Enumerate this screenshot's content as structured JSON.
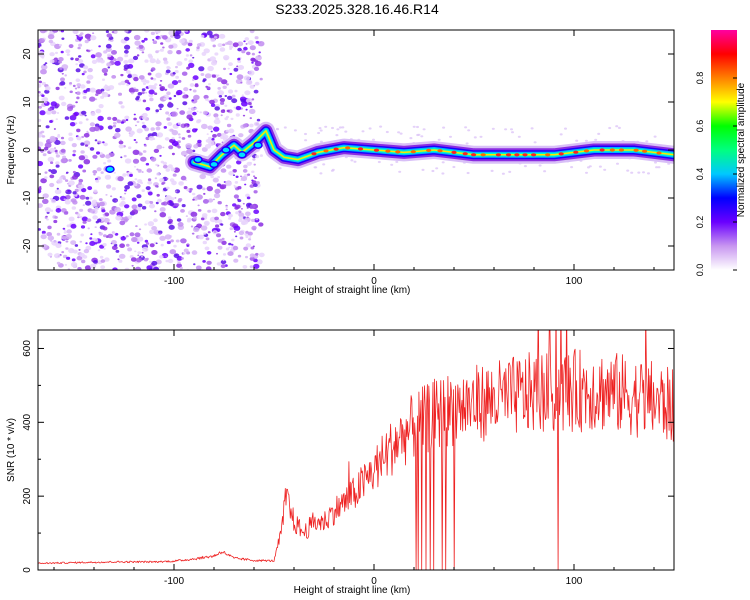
{
  "title": "S233.2025.328.16.46.R14",
  "chart_data": [
    {
      "type": "heatmap",
      "xlabel": "Height of straight line (km)",
      "ylabel": "Frequency (Hz)",
      "xlim": [
        -168,
        150
      ],
      "ylim": [
        -25,
        25
      ],
      "xticks": [
        "-100",
        "0",
        "100"
      ],
      "yticks": [
        "20",
        "10",
        "0",
        "-10",
        "-20"
      ],
      "colorbar": {
        "label": "Normalized spectral amplitude",
        "range": [
          0,
          1
        ],
        "ticks": [
          "0.0",
          "0.2",
          "0.4",
          "0.6",
          "0.8"
        ],
        "colors": [
          "#ffffff",
          "#c896f0",
          "#6a00ff",
          "#0000ff",
          "#00c8ff",
          "#00ff80",
          "#00ff00",
          "#ffff00",
          "#ff8000",
          "#ff0000",
          "#ff00a0"
        ]
      },
      "ridge": [
        {
          "x": -90,
          "y": -2.5
        },
        {
          "x": -82,
          "y": -3.5
        },
        {
          "x": -76,
          "y": -1
        },
        {
          "x": -70,
          "y": 1
        },
        {
          "x": -66,
          "y": -0.5
        },
        {
          "x": -60,
          "y": 1.5
        },
        {
          "x": -54,
          "y": 4
        },
        {
          "x": -50,
          "y": 0
        },
        {
          "x": -45,
          "y": -1.5
        },
        {
          "x": -38,
          "y": -2
        },
        {
          "x": -28,
          "y": -0.5
        },
        {
          "x": -15,
          "y": 0.5
        },
        {
          "x": 0,
          "y": 0
        },
        {
          "x": 15,
          "y": -0.5
        },
        {
          "x": 30,
          "y": 0
        },
        {
          "x": 50,
          "y": -1
        },
        {
          "x": 70,
          "y": -1
        },
        {
          "x": 90,
          "y": -1
        },
        {
          "x": 110,
          "y": 0
        },
        {
          "x": 130,
          "y": 0
        },
        {
          "x": 150,
          "y": -1
        }
      ],
      "noise_region": {
        "x_from": -168,
        "x_to": -56,
        "level": 0.2
      }
    },
    {
      "type": "line",
      "xlabel": "Height of straight line (km)",
      "ylabel": "SNR (10 * v/v)",
      "xlim": [
        -168,
        150
      ],
      "ylim": [
        0,
        650
      ],
      "xticks": [
        "-100",
        "0",
        "100"
      ],
      "yticks": [
        "600",
        "400",
        "200",
        "0"
      ],
      "series": [
        {
          "color": "#ee2222",
          "x": [
            -168,
            -150,
            -130,
            -110,
            -100,
            -90,
            -80,
            -76,
            -70,
            -60,
            -50,
            -46,
            -44,
            -40,
            -35,
            -30,
            -25,
            -20,
            -10,
            0,
            10,
            20,
            30,
            40,
            50,
            60,
            70,
            80,
            90,
            100,
            110,
            120,
            130,
            140,
            150
          ],
          "y": [
            18,
            20,
            22,
            22,
            24,
            30,
            38,
            50,
            32,
            26,
            25,
            110,
            200,
            130,
            100,
            130,
            130,
            160,
            205,
            270,
            340,
            390,
            420,
            440,
            450,
            460,
            470,
            480,
            480,
            485,
            490,
            480,
            470,
            460,
            440
          ],
          "noise": 0.18,
          "dropouts": [
            21,
            22,
            24,
            26,
            28,
            30,
            34,
            36,
            40,
            92
          ]
        }
      ]
    }
  ]
}
